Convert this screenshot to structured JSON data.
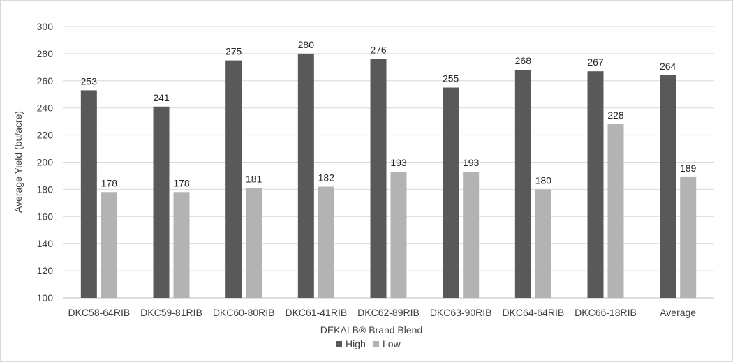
{
  "chart_data": {
    "type": "bar",
    "title": "",
    "xlabel": "DEKALB® Brand Blend",
    "ylabel": "Average Yield (bu/acre)",
    "ylim": [
      100,
      300
    ],
    "yticks": [
      100,
      120,
      140,
      160,
      180,
      200,
      220,
      240,
      260,
      280,
      300
    ],
    "grid": true,
    "legend_position": "bottom",
    "categories": [
      "DKC58-64RIB",
      "DKC59-81RIB",
      "DKC60-80RIB",
      "DKC61-41RIB",
      "DKC62-89RIB",
      "DKC63-90RIB",
      "DKC64-64RIB",
      "DKC66-18RIB",
      "Average"
    ],
    "series": [
      {
        "name": "High",
        "color": "#595959",
        "values": [
          253,
          241,
          275,
          280,
          276,
          255,
          268,
          267,
          264
        ]
      },
      {
        "name": "Low",
        "color": "#b3b3b3",
        "values": [
          178,
          178,
          181,
          182,
          193,
          193,
          180,
          228,
          189
        ]
      }
    ]
  }
}
